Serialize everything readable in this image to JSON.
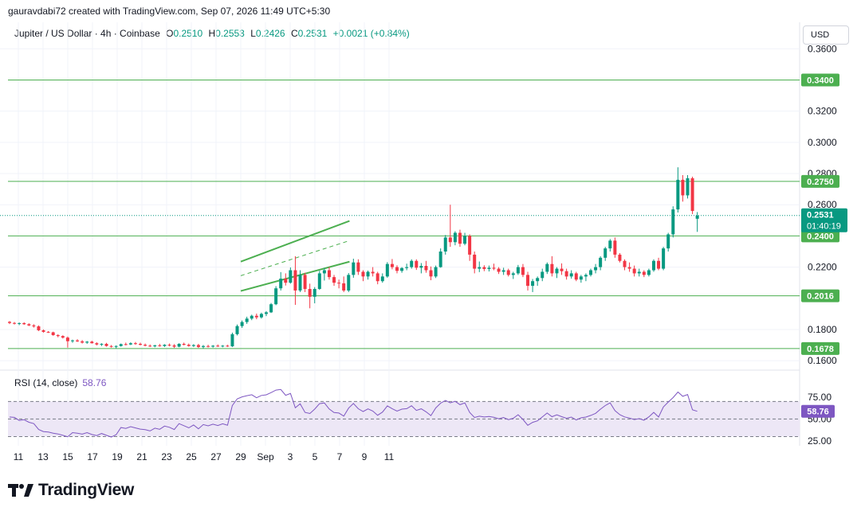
{
  "header": {
    "credit": "gauravdabi72 created with TradingView.com, Sep 07, 2026 11:49 UTC+5:30",
    "symbol": "Jupiter / US Dollar · 4h · Coinbase",
    "ohlc": [
      {
        "label": "O",
        "value": "0.2510"
      },
      {
        "label": "H",
        "value": "0.2553"
      },
      {
        "label": "L",
        "value": "0.2426"
      },
      {
        "label": "C",
        "value": "0.2531"
      }
    ],
    "change": "+0.0021 (+0.84%)",
    "currency": "USD"
  },
  "brand": {
    "name": "TradingView"
  },
  "chart_data": [
    {
      "type": "candlestick",
      "x_ticks": [
        "11",
        "13",
        "15",
        "17",
        "19",
        "21",
        "23",
        "25",
        "27",
        "29",
        "Sep",
        "3",
        "5",
        "7",
        "9",
        "11"
      ],
      "y_ticks": [
        "0.3600",
        "0.3200",
        "0.3000",
        "0.2800",
        "0.2600",
        "0.2200",
        "0.1800",
        "0.1600"
      ],
      "ylim": [
        0.1565,
        0.3632
      ],
      "horizontal_levels": [
        {
          "label": "0.3400",
          "value": 0.34
        },
        {
          "label": "0.2750",
          "value": 0.275
        },
        {
          "label": "0.2400",
          "value": 0.24
        },
        {
          "label": "0.2016",
          "value": 0.2016
        },
        {
          "label": "0.1678",
          "value": 0.1678
        }
      ],
      "last_price": {
        "label": "0.2531",
        "value": 0.2531,
        "countdown": "01:40:19"
      },
      "channel": {
        "upper": [
          [
            29,
            0.2235
          ],
          [
            37.8,
            0.2496
          ]
        ],
        "middle": [
          [
            29,
            0.2145
          ],
          [
            37.8,
            0.237
          ]
        ],
        "lower": [
          [
            29,
            0.2047
          ],
          [
            37.8,
            0.2235
          ]
        ]
      },
      "colors": {
        "up": "#089981",
        "down": "#f23645",
        "level": "#4caf50",
        "rsi": "#7e57c2",
        "rsi_bg": "#ede7f6"
      },
      "candles": [
        [
          0.1849,
          0.1854,
          0.1835,
          0.1842
        ],
        [
          0.1842,
          0.1848,
          0.1832,
          0.1838
        ],
        [
          0.1838,
          0.1845,
          0.1828,
          0.1841
        ],
        [
          0.1841,
          0.1846,
          0.183,
          0.1834
        ],
        [
          0.1834,
          0.184,
          0.1822,
          0.1826
        ],
        [
          0.1826,
          0.1834,
          0.1812,
          0.182
        ],
        [
          0.182,
          0.1826,
          0.179,
          0.1795
        ],
        [
          0.1795,
          0.18,
          0.178,
          0.1785
        ],
        [
          0.1785,
          0.179,
          0.1778,
          0.1782
        ],
        [
          0.1782,
          0.1786,
          0.176,
          0.1764
        ],
        [
          0.1764,
          0.177,
          0.175,
          0.1758
        ],
        [
          0.1758,
          0.1763,
          0.1742,
          0.1748
        ],
        [
          0.1748,
          0.1755,
          0.1684,
          0.1725
        ],
        [
          0.1725,
          0.1735,
          0.1715,
          0.173
        ],
        [
          0.173,
          0.1738,
          0.172,
          0.1724
        ],
        [
          0.1724,
          0.1732,
          0.171,
          0.1716
        ],
        [
          0.1716,
          0.1726,
          0.1708,
          0.1722
        ],
        [
          0.1722,
          0.1728,
          0.171,
          0.1712
        ],
        [
          0.1712,
          0.1718,
          0.1698,
          0.1704
        ],
        [
          0.1704,
          0.1712,
          0.1694,
          0.1708
        ],
        [
          0.1708,
          0.1714,
          0.169,
          0.1694
        ],
        [
          0.1694,
          0.17,
          0.1684,
          0.169
        ],
        [
          0.169,
          0.1698,
          0.168,
          0.1694
        ],
        [
          0.1694,
          0.171,
          0.169,
          0.1706
        ],
        [
          0.1706,
          0.1716,
          0.1698,
          0.1704
        ],
        [
          0.1704,
          0.1718,
          0.17,
          0.1712
        ],
        [
          0.1712,
          0.172,
          0.1702,
          0.1708
        ],
        [
          0.1708,
          0.1716,
          0.1698,
          0.1702
        ],
        [
          0.1702,
          0.171,
          0.1692,
          0.1696
        ],
        [
          0.1696,
          0.1704,
          0.1688,
          0.1692
        ],
        [
          0.1692,
          0.1702,
          0.1686,
          0.1698
        ],
        [
          0.1698,
          0.1708,
          0.169,
          0.1694
        ],
        [
          0.1694,
          0.1706,
          0.1688,
          0.1702
        ],
        [
          0.1702,
          0.171,
          0.1692,
          0.1698
        ],
        [
          0.1698,
          0.1706,
          0.1682,
          0.169
        ],
        [
          0.169,
          0.1712,
          0.1686,
          0.1708
        ],
        [
          0.1708,
          0.1716,
          0.1698,
          0.1702
        ],
        [
          0.1702,
          0.171,
          0.169,
          0.1694
        ],
        [
          0.1694,
          0.1706,
          0.1688,
          0.17
        ],
        [
          0.17,
          0.1708,
          0.1682,
          0.1688
        ],
        [
          0.1688,
          0.17,
          0.1678,
          0.1694
        ],
        [
          0.1694,
          0.1702,
          0.1685,
          0.169
        ],
        [
          0.169,
          0.17,
          0.1684,
          0.1696
        ],
        [
          0.1696,
          0.1704,
          0.1688,
          0.1692
        ],
        [
          0.1692,
          0.17,
          0.1686,
          0.1696
        ],
        [
          0.1696,
          0.1702,
          0.1688,
          0.1692
        ],
        [
          0.1692,
          0.178,
          0.1688,
          0.177
        ],
        [
          0.177,
          0.1832,
          0.1762,
          0.1822
        ],
        [
          0.1822,
          0.1858,
          0.181,
          0.1848
        ],
        [
          0.1848,
          0.1882,
          0.1836,
          0.187
        ],
        [
          0.187,
          0.1895,
          0.186,
          0.1888
        ],
        [
          0.1888,
          0.1902,
          0.1866,
          0.1878
        ],
        [
          0.1878,
          0.1908,
          0.187,
          0.19
        ],
        [
          0.19,
          0.1918,
          0.1886,
          0.191
        ],
        [
          0.191,
          0.197,
          0.1906,
          0.1962
        ],
        [
          0.1962,
          0.2078,
          0.1956,
          0.2064
        ],
        [
          0.2064,
          0.2168,
          0.205,
          0.2126
        ],
        [
          0.2126,
          0.216,
          0.2082,
          0.21
        ],
        [
          0.21,
          0.2198,
          0.2094,
          0.218
        ],
        [
          0.218,
          0.227,
          0.1958,
          0.205
        ],
        [
          0.205,
          0.218,
          0.204,
          0.215
        ],
        [
          0.215,
          0.2164,
          0.204,
          0.206
        ],
        [
          0.206,
          0.2094,
          0.1936,
          0.201
        ],
        [
          0.201,
          0.2072,
          0.1968,
          0.206
        ],
        [
          0.206,
          0.2176,
          0.2054,
          0.216
        ],
        [
          0.216,
          0.2194,
          0.2114,
          0.218
        ],
        [
          0.218,
          0.22,
          0.212,
          0.2136
        ],
        [
          0.2136,
          0.215,
          0.208,
          0.21
        ],
        [
          0.21,
          0.212,
          0.2064,
          0.2096
        ],
        [
          0.2096,
          0.214,
          0.204,
          0.205
        ],
        [
          0.205,
          0.2162,
          0.204,
          0.215
        ],
        [
          0.215,
          0.2254,
          0.2132,
          0.223
        ],
        [
          0.223,
          0.225,
          0.215,
          0.217
        ],
        [
          0.217,
          0.218,
          0.211,
          0.214
        ],
        [
          0.214,
          0.2178,
          0.212,
          0.217
        ],
        [
          0.217,
          0.22,
          0.214,
          0.216
        ],
        [
          0.216,
          0.217,
          0.209,
          0.211
        ],
        [
          0.211,
          0.216,
          0.21,
          0.214
        ],
        [
          0.214,
          0.2232,
          0.2132,
          0.222
        ],
        [
          0.222,
          0.2252,
          0.2186,
          0.22
        ],
        [
          0.22,
          0.2212,
          0.216,
          0.2176
        ],
        [
          0.2176,
          0.22,
          0.2164,
          0.2194
        ],
        [
          0.2194,
          0.2222,
          0.218,
          0.22
        ],
        [
          0.22,
          0.225,
          0.219,
          0.224
        ],
        [
          0.224,
          0.225,
          0.2182,
          0.2196
        ],
        [
          0.2196,
          0.2226,
          0.216,
          0.2208
        ],
        [
          0.2208,
          0.224,
          0.2164,
          0.218
        ],
        [
          0.218,
          0.2204,
          0.2116,
          0.214
        ],
        [
          0.214,
          0.221,
          0.213,
          0.22
        ],
        [
          0.22,
          0.232,
          0.2196,
          0.23
        ],
        [
          0.23,
          0.2406,
          0.228,
          0.239
        ],
        [
          0.239,
          0.26,
          0.233,
          0.236
        ],
        [
          0.236,
          0.243,
          0.234,
          0.242
        ],
        [
          0.242,
          0.244,
          0.233,
          0.235
        ],
        [
          0.235,
          0.242,
          0.234,
          0.24
        ],
        [
          0.24,
          0.241,
          0.224,
          0.228
        ],
        [
          0.228,
          0.23,
          0.216,
          0.219
        ],
        [
          0.219,
          0.2236,
          0.2168,
          0.22
        ],
        [
          0.22,
          0.2212,
          0.2174,
          0.2188
        ],
        [
          0.2188,
          0.221,
          0.2172,
          0.2196
        ],
        [
          0.2196,
          0.2222,
          0.218,
          0.219
        ],
        [
          0.219,
          0.22,
          0.2156,
          0.217
        ],
        [
          0.217,
          0.2196,
          0.215,
          0.218
        ],
        [
          0.218,
          0.219,
          0.214,
          0.215
        ],
        [
          0.215,
          0.217,
          0.2124,
          0.216
        ],
        [
          0.216,
          0.2214,
          0.215,
          0.22
        ],
        [
          0.22,
          0.222,
          0.2136,
          0.215
        ],
        [
          0.215,
          0.217,
          0.205,
          0.208
        ],
        [
          0.208,
          0.2124,
          0.204,
          0.211
        ],
        [
          0.211,
          0.214,
          0.208,
          0.213
        ],
        [
          0.213,
          0.219,
          0.211,
          0.217
        ],
        [
          0.217,
          0.223,
          0.2156,
          0.222
        ],
        [
          0.222,
          0.227,
          0.214,
          0.216
        ],
        [
          0.216,
          0.22,
          0.213,
          0.219
        ],
        [
          0.219,
          0.2224,
          0.215,
          0.2174
        ],
        [
          0.2174,
          0.219,
          0.212,
          0.214
        ],
        [
          0.214,
          0.218,
          0.2126,
          0.216
        ],
        [
          0.216,
          0.217,
          0.211,
          0.212
        ],
        [
          0.212,
          0.215,
          0.21,
          0.214
        ],
        [
          0.214,
          0.216,
          0.211,
          0.215
        ],
        [
          0.215,
          0.219,
          0.214,
          0.218
        ],
        [
          0.218,
          0.222,
          0.216,
          0.22
        ],
        [
          0.22,
          0.227,
          0.218,
          0.226
        ],
        [
          0.226,
          0.233,
          0.224,
          0.232
        ],
        [
          0.232,
          0.238,
          0.23,
          0.237
        ],
        [
          0.237,
          0.239,
          0.226,
          0.228
        ],
        [
          0.228,
          0.229,
          0.223,
          0.224
        ],
        [
          0.224,
          0.225,
          0.218,
          0.22
        ],
        [
          0.22,
          0.223,
          0.217,
          0.219
        ],
        [
          0.219,
          0.221,
          0.214,
          0.216
        ],
        [
          0.216,
          0.219,
          0.214,
          0.217
        ],
        [
          0.217,
          0.218,
          0.2136,
          0.215
        ],
        [
          0.215,
          0.219,
          0.214,
          0.218
        ],
        [
          0.218,
          0.225,
          0.217,
          0.224
        ],
        [
          0.224,
          0.226,
          0.218,
          0.219
        ],
        [
          0.219,
          0.233,
          0.218,
          0.232
        ],
        [
          0.232,
          0.242,
          0.23,
          0.241
        ],
        [
          0.241,
          0.259,
          0.239,
          0.257
        ],
        [
          0.257,
          0.284,
          0.255,
          0.276
        ],
        [
          0.276,
          0.279,
          0.262,
          0.266
        ],
        [
          0.266,
          0.279,
          0.264,
          0.277
        ],
        [
          0.277,
          0.278,
          0.254,
          0.256
        ],
        [
          0.251,
          0.2553,
          0.2426,
          0.2531
        ]
      ]
    },
    {
      "type": "line",
      "title": "RSI (14, close)",
      "current_label": "58.76",
      "current": 58.76,
      "y_ticks": [
        "75.00",
        "50.00",
        "25.00"
      ],
      "ylim": [
        17.8,
        92
      ],
      "bands": {
        "upper": 70,
        "middle": 50,
        "lower": 30
      },
      "values": [
        52.3,
        51.8,
        48.4,
        49.2,
        46.3,
        44.8,
        38.1,
        35.7,
        35.2,
        33.9,
        33.0,
        31.5,
        29.8,
        34.5,
        33.9,
        32.8,
        34.5,
        32.4,
        31.2,
        33.5,
        31.5,
        29.5,
        32.2,
        40.3,
        39.3,
        41.3,
        39.9,
        38.5,
        37.9,
        36.4,
        39.6,
        38.3,
        42.0,
        40.6,
        38.1,
        44.8,
        42.4,
        40.0,
        43.2,
        38.9,
        43.7,
        42.2,
        44.1,
        42.6,
        44.6,
        43.0,
        65.3,
        72.9,
        75.2,
        76.5,
        77.6,
        74.2,
        76.8,
        77.5,
        80.1,
        82.9,
        83.6,
        77.0,
        79.1,
        62.8,
        67.3,
        57.5,
        56.3,
        61.2,
        67.5,
        68.3,
        61.4,
        57.3,
        56.8,
        53.3,
        62.4,
        67.7,
        61.7,
        58.5,
        61.5,
        59.1,
        54.3,
        57.9,
        64.9,
        61.8,
        59.0,
        61.2,
        61.8,
        65.0,
        59.8,
        61.6,
        58.2,
        53.9,
        62.6,
        68.0,
        71.1,
        68.4,
        70.1,
        66.3,
        68.4,
        57.5,
        51.7,
        53.2,
        52.3,
        52.8,
        51.9,
        50.3,
        51.7,
        49.3,
        50.8,
        54.9,
        49.5,
        42.9,
        46.2,
        47.9,
        52.5,
        56.8,
        52.6,
        54.7,
        52.6,
        50.8,
        52.2,
        48.9,
        51.4,
        52.2,
        54.1,
        56.4,
        61.1,
        65.3,
        68.4,
        59.5,
        54.9,
        52.4,
        51.1,
        49.4,
        50.5,
        48.7,
        52.5,
        57.5,
        52.3,
        63.7,
        69.3,
        74.4,
        80.7,
        75.8,
        77.8,
        60.4,
        58.76
      ]
    }
  ]
}
